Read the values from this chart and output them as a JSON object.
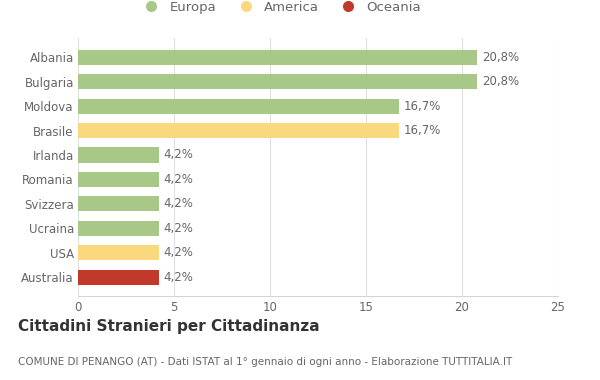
{
  "categories": [
    "Albania",
    "Bulgaria",
    "Moldova",
    "Brasile",
    "Irlanda",
    "Romania",
    "Svizzera",
    "Ucraina",
    "USA",
    "Australia"
  ],
  "values": [
    20.8,
    20.8,
    16.7,
    16.7,
    4.2,
    4.2,
    4.2,
    4.2,
    4.2,
    4.2
  ],
  "labels": [
    "20,8%",
    "20,8%",
    "16,7%",
    "16,7%",
    "4,2%",
    "4,2%",
    "4,2%",
    "4,2%",
    "4,2%",
    "4,2%"
  ],
  "colors": [
    "#a8c887",
    "#a8c887",
    "#a8c887",
    "#f9d87e",
    "#a8c887",
    "#a8c887",
    "#a8c887",
    "#a8c887",
    "#f9d87e",
    "#c0392b"
  ],
  "legend_labels": [
    "Europa",
    "America",
    "Oceania"
  ],
  "legend_colors": [
    "#a8c887",
    "#f9d87e",
    "#c0392b"
  ],
  "title": "Cittadini Stranieri per Cittadinanza",
  "subtitle": "COMUNE DI PENANGO (AT) - Dati ISTAT al 1° gennaio di ogni anno - Elaborazione TUTTITALIA.IT",
  "xlim": [
    0,
    25
  ],
  "xticks": [
    0,
    5,
    10,
    15,
    20,
    25
  ],
  "background_color": "#ffffff",
  "bar_height": 0.62,
  "title_fontsize": 11,
  "subtitle_fontsize": 7.5,
  "label_fontsize": 8.5,
  "tick_fontsize": 8.5,
  "legend_fontsize": 9.5
}
